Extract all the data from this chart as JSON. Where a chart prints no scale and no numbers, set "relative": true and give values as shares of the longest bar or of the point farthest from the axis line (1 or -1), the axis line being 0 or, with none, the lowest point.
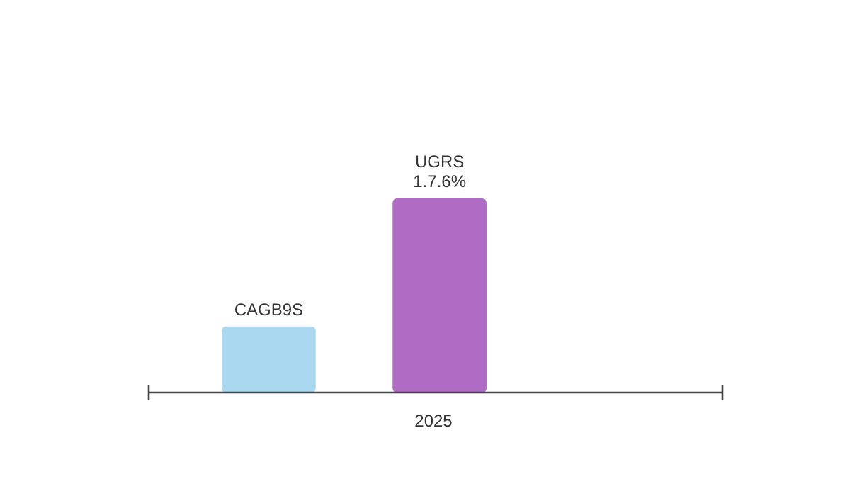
{
  "chart_data": {
    "type": "bar",
    "relative": true,
    "categories": [
      null,
      null
    ],
    "values": [
      0.34,
      1
    ],
    "colors": [
      "#aad8f0",
      "#b06cc4"
    ],
    "xlabel": "2025",
    "annotations": [
      "CAGB9S",
      "UGRS\n1.7.6%"
    ]
  }
}
